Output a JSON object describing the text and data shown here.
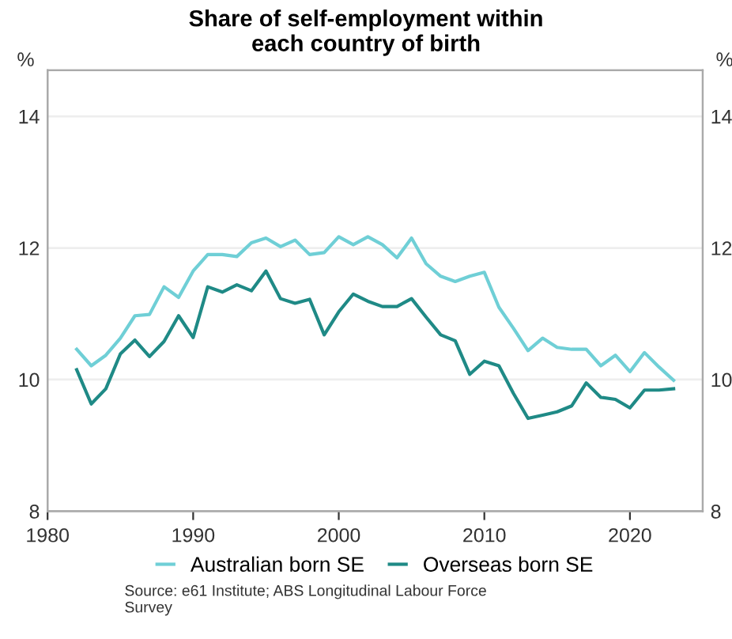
{
  "chart_data": {
    "type": "line",
    "title": "Share of self-employment within\neach country of birth",
    "ylabel": "%",
    "y2label": "%",
    "x": [
      1982,
      1983,
      1984,
      1985,
      1986,
      1987,
      1988,
      1989,
      1990,
      1991,
      1992,
      1993,
      1994,
      1995,
      1996,
      1997,
      1998,
      1999,
      2000,
      2001,
      2002,
      2003,
      2004,
      2005,
      2006,
      2007,
      2008,
      2009,
      2010,
      2011,
      2012,
      2013,
      2014,
      2015,
      2016,
      2017,
      2018,
      2019,
      2020,
      2021,
      2022,
      2023
    ],
    "series": [
      {
        "name": "Australian born SE",
        "color": "#6fcfd6",
        "values": [
          10.46,
          10.21,
          10.37,
          10.63,
          10.97,
          10.99,
          11.41,
          11.25,
          11.65,
          11.9,
          11.9,
          11.87,
          12.08,
          12.15,
          12.02,
          12.12,
          11.9,
          11.93,
          12.17,
          12.05,
          12.17,
          12.05,
          11.85,
          12.15,
          11.76,
          11.57,
          11.49,
          11.57,
          11.63,
          11.1,
          10.78,
          10.44,
          10.63,
          10.49,
          10.46,
          10.46,
          10.21,
          10.37,
          10.12,
          10.41,
          10.19,
          9.99
        ]
      },
      {
        "name": "Overseas born SE",
        "color": "#1f8a86",
        "values": [
          10.15,
          9.63,
          9.86,
          10.39,
          10.6,
          10.35,
          10.58,
          10.97,
          10.64,
          11.41,
          11.33,
          11.44,
          11.35,
          11.65,
          11.23,
          11.16,
          11.22,
          10.68,
          11.03,
          11.3,
          11.19,
          11.11,
          11.11,
          11.23,
          10.95,
          10.68,
          10.59,
          10.08,
          10.28,
          10.21,
          9.79,
          9.41,
          9.46,
          9.51,
          9.6,
          9.95,
          9.73,
          9.7,
          9.57,
          9.84,
          9.84,
          9.86
        ]
      }
    ],
    "xlim": [
      1980,
      2025
    ],
    "xticks": [
      1980,
      1990,
      2000,
      2010,
      2020
    ],
    "ylim": [
      8,
      14.7
    ],
    "yticks": [
      8,
      10,
      12,
      14
    ],
    "y2lim": [
      8,
      14.7
    ],
    "y2ticks": [
      8,
      10,
      12,
      14
    ],
    "grid": "y",
    "legend": "bottom",
    "line_style": "solid",
    "marker": "none",
    "annotations": [
      "Source: e61 Institute; ABS Longitudinal Labour Force\nSurvey"
    ]
  }
}
